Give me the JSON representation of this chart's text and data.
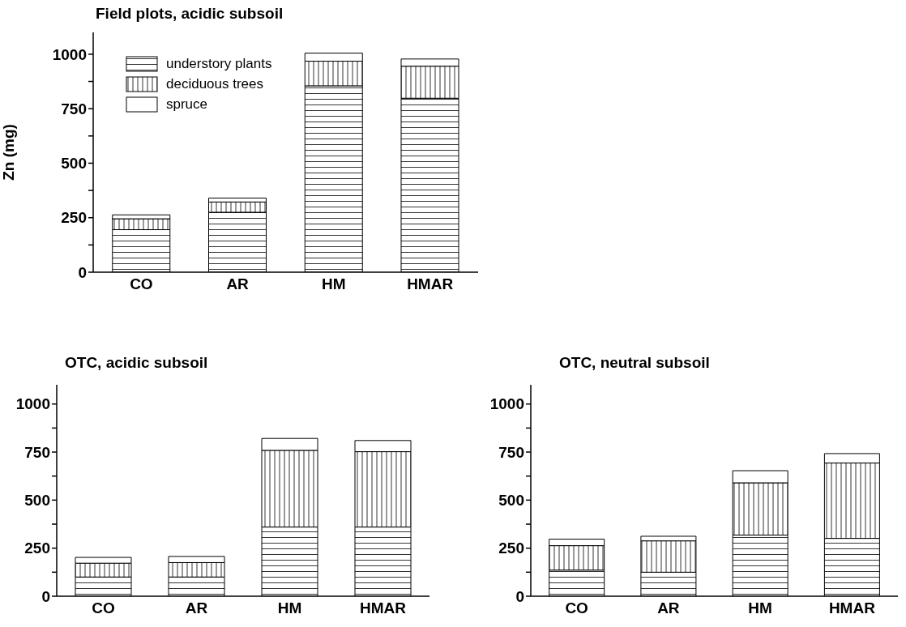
{
  "chart_data": [
    {
      "type": "bar",
      "title": "Field plots, acidic subsoil",
      "ylabel": "Zn (mg)",
      "categories": [
        "CO",
        "AR",
        "HM",
        "HMAR"
      ],
      "stacked": true,
      "legend": "top left",
      "ylim": [
        0,
        1100
      ],
      "yticks": [
        0,
        {
          "value": 125,
          "label": null
        },
        250,
        {
          "value": 375,
          "label": null
        },
        500,
        {
          "value": 625,
          "label": null
        },
        750,
        {
          "value": 875,
          "label": null
        },
        1000
      ],
      "grid": false,
      "series": [
        {
          "name": "understory plants",
          "values": [
            195,
            275,
            855,
            798
          ]
        },
        {
          "name": "deciduous trees",
          "values": [
            50,
            47,
            113,
            147
          ]
        },
        {
          "name": "spruce",
          "values": [
            18,
            18,
            37,
            33
          ]
        }
      ]
    },
    {
      "type": "bar",
      "title": "OTC, acidic subsoil",
      "categories": [
        "CO",
        "AR",
        "HM",
        "HMAR"
      ],
      "stacked": true,
      "legend": false,
      "ylim": [
        0,
        1100
      ],
      "yticks": [
        0,
        {
          "value": 125,
          "label": null
        },
        250,
        {
          "value": 375,
          "label": null
        },
        500,
        {
          "value": 625,
          "label": null
        },
        750,
        {
          "value": 875,
          "label": null
        },
        1000
      ],
      "grid": false,
      "series": [
        {
          "values": [
            100,
            100,
            360,
            360
          ]
        },
        {
          "values": [
            72,
            75,
            399,
            392
          ]
        },
        {
          "values": [
            30,
            32,
            62,
            58
          ]
        }
      ]
    },
    {
      "type": "bar",
      "title": "OTC, neutral subsoil",
      "categories": [
        "CO",
        "AR",
        "HM",
        "HMAR"
      ],
      "stacked": true,
      "legend": false,
      "ylim": [
        0,
        1100
      ],
      "yticks": [
        0,
        {
          "value": 125,
          "label": null
        },
        250,
        {
          "value": 375,
          "label": null
        },
        500,
        {
          "value": 625,
          "label": null
        },
        750,
        {
          "value": 875,
          "label": null
        },
        1000
      ],
      "grid": false,
      "series": [
        {
          "values": [
            136,
            125,
            318,
            301
          ]
        },
        {
          "values": [
            127,
            163,
            272,
            392
          ]
        },
        {
          "values": [
            34,
            24,
            63,
            49
          ]
        }
      ]
    }
  ]
}
